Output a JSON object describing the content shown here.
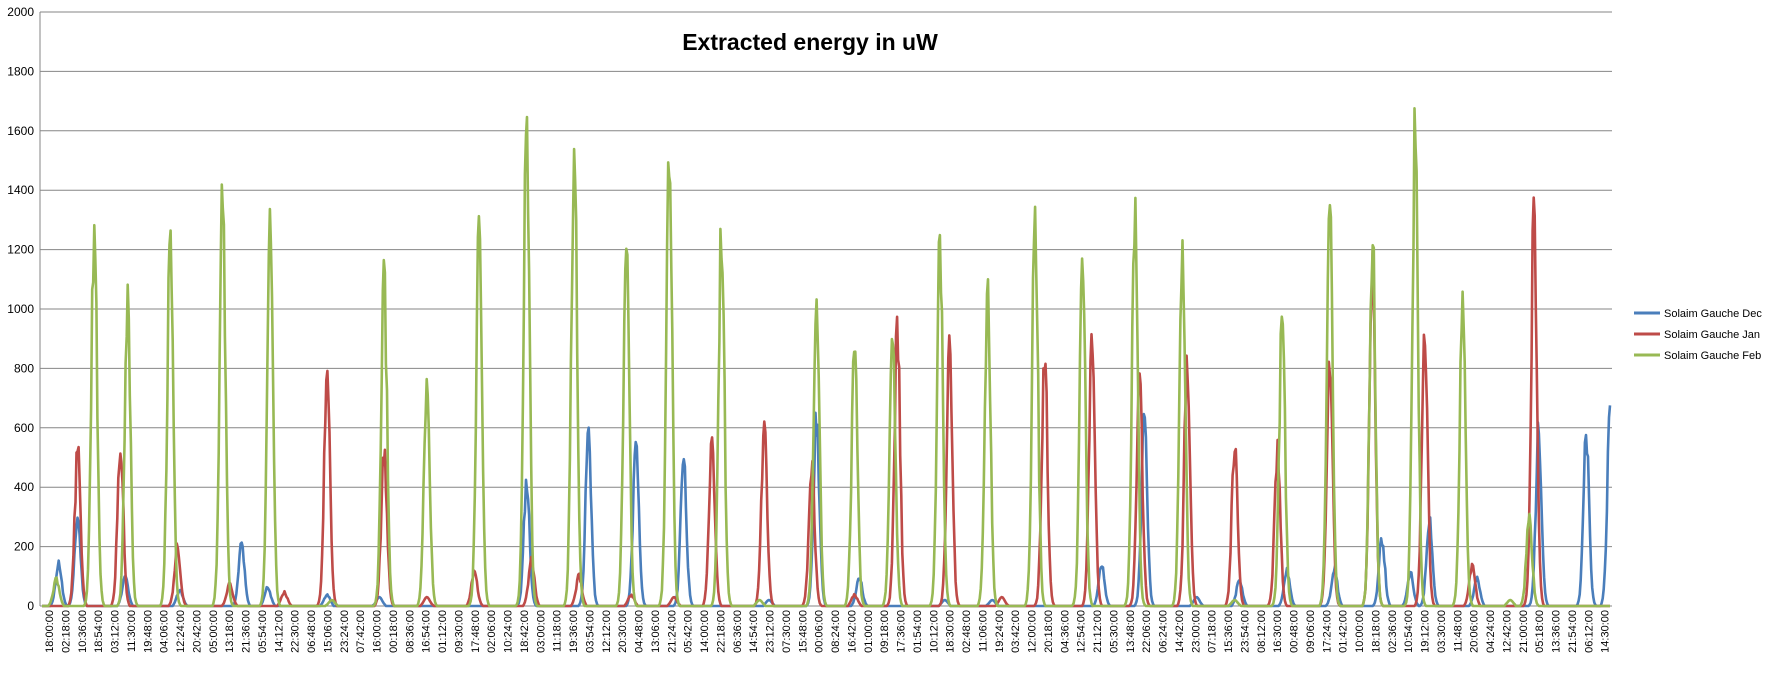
{
  "chart_data": {
    "type": "line",
    "title": "Extracted energy in uW",
    "xlabel": "",
    "ylabel": "",
    "ylim": [
      0,
      2000
    ],
    "y_ticks": [
      0,
      200,
      400,
      600,
      800,
      1000,
      1200,
      1400,
      1600,
      1800,
      2000
    ],
    "grid": "horizontal",
    "legend_position": "right",
    "x_tick_labels": [
      "18:00:00",
      "02:18:00",
      "10:36:00",
      "18:54:00",
      "03:12:00",
      "11:30:00",
      "19:48:00",
      "04:06:00",
      "12:24:00",
      "20:42:00",
      "05:00:00",
      "13:18:00",
      "21:36:00",
      "05:54:00",
      "14:12:00",
      "22:30:00",
      "06:48:00",
      "15:06:00",
      "23:24:00",
      "07:42:00",
      "16:00:00",
      "00:18:00",
      "08:36:00",
      "16:54:00",
      "01:12:00",
      "09:30:00",
      "17:48:00",
      "02:06:00",
      "10:24:00",
      "18:42:00",
      "03:00:00",
      "11:18:00",
      "19:36:00",
      "03:54:00",
      "12:12:00",
      "20:30:00",
      "04:48:00",
      "13:06:00",
      "21:24:00",
      "05:42:00",
      "14:00:00",
      "22:18:00",
      "06:36:00",
      "14:54:00",
      "23:12:00",
      "07:30:00",
      "15:48:00",
      "00:06:00",
      "08:24:00",
      "16:42:00",
      "01:00:00",
      "09:18:00",
      "17:36:00",
      "01:54:00",
      "10:12:00",
      "18:30:00",
      "02:48:00",
      "11:06:00",
      "19:24:00",
      "03:42:00",
      "12:00:00",
      "20:18:00",
      "04:36:00",
      "12:54:00",
      "21:12:00",
      "05:30:00",
      "13:48:00",
      "22:06:00",
      "06:24:00",
      "14:42:00",
      "23:00:00",
      "07:18:00",
      "15:36:00",
      "23:54:00",
      "08:12:00",
      "16:30:00",
      "00:48:00",
      "09:06:00",
      "17:24:00",
      "01:42:00",
      "10:00:00",
      "18:18:00",
      "02:36:00",
      "10:54:00",
      "19:12:00",
      "03:30:00",
      "11:48:00",
      "20:06:00",
      "04:24:00",
      "12:42:00",
      "21:00:00",
      "05:18:00",
      "13:36:00",
      "21:54:00",
      "06:12:00",
      "14:30:00"
    ],
    "day_axis_range": [
      0,
      33
    ],
    "series": [
      {
        "name": "Solaim Gauche Dec",
        "color": "#4a7ebb",
        "peaks": [
          [
            0.35,
            160
          ],
          [
            0.75,
            330
          ],
          [
            1.75,
            110
          ],
          [
            2.9,
            60
          ],
          [
            4.2,
            230
          ],
          [
            4.75,
            70
          ],
          [
            6.0,
            40
          ],
          [
            7.1,
            30
          ],
          [
            10.2,
            460
          ],
          [
            11.5,
            640
          ],
          [
            12.5,
            600
          ],
          [
            13.5,
            560
          ],
          [
            15.3,
            20
          ],
          [
            16.3,
            690
          ],
          [
            17.2,
            110
          ],
          [
            19.0,
            20
          ],
          [
            20.0,
            20
          ],
          [
            22.3,
            150
          ],
          [
            23.2,
            680
          ],
          [
            24.3,
            30
          ],
          [
            25.2,
            100
          ],
          [
            26.2,
            130
          ],
          [
            27.2,
            140
          ],
          [
            28.2,
            250
          ],
          [
            28.8,
            120
          ],
          [
            29.2,
            330
          ],
          [
            30.2,
            100
          ],
          [
            31.5,
            650
          ],
          [
            32.5,
            620
          ],
          [
            33.0,
            680
          ]
        ]
      },
      {
        "name": "Solaim Gauche Jan",
        "color": "#be4b48",
        "peaks": [
          [
            0.75,
            570
          ],
          [
            1.65,
            600
          ],
          [
            2.85,
            220
          ],
          [
            3.95,
            80
          ],
          [
            5.1,
            50
          ],
          [
            6.0,
            890
          ],
          [
            7.2,
            560
          ],
          [
            8.1,
            30
          ],
          [
            9.1,
            130
          ],
          [
            10.3,
            170
          ],
          [
            11.3,
            110
          ],
          [
            12.4,
            40
          ],
          [
            13.3,
            30
          ],
          [
            14.1,
            590
          ],
          [
            15.2,
            640
          ],
          [
            16.2,
            510
          ],
          [
            17.1,
            40
          ],
          [
            18.0,
            1010
          ],
          [
            19.1,
            950
          ],
          [
            20.2,
            30
          ],
          [
            21.1,
            920
          ],
          [
            22.1,
            1000
          ],
          [
            23.1,
            820
          ],
          [
            24.1,
            920
          ],
          [
            25.1,
            600
          ],
          [
            26.0,
            570
          ],
          [
            27.1,
            910
          ],
          [
            28.0,
            1300
          ],
          [
            29.1,
            1000
          ],
          [
            30.1,
            150
          ],
          [
            31.4,
            1410
          ]
        ]
      },
      {
        "name": "Solaim Gauche Feb",
        "color": "#98b954",
        "peaks": [
          [
            0.3,
            100
          ],
          [
            1.1,
            1400
          ],
          [
            1.8,
            1110
          ],
          [
            2.7,
            1400
          ],
          [
            3.8,
            1490
          ],
          [
            4.8,
            1370
          ],
          [
            6.1,
            20
          ],
          [
            7.2,
            1210
          ],
          [
            8.1,
            840
          ],
          [
            9.2,
            1390
          ],
          [
            10.2,
            1780
          ],
          [
            11.2,
            1690
          ],
          [
            12.3,
            1370
          ],
          [
            13.2,
            1700
          ],
          [
            14.3,
            1390
          ],
          [
            15.1,
            20
          ],
          [
            16.3,
            1190
          ],
          [
            17.1,
            940
          ],
          [
            17.9,
            1050
          ],
          [
            18.9,
            1340
          ],
          [
            19.9,
            1150
          ],
          [
            20.9,
            1480
          ],
          [
            21.9,
            1270
          ],
          [
            23.0,
            1460
          ],
          [
            24.0,
            1360
          ],
          [
            25.1,
            20
          ],
          [
            26.1,
            1070
          ],
          [
            27.1,
            1450
          ],
          [
            28.0,
            1370
          ],
          [
            28.9,
            1740
          ],
          [
            29.9,
            1140
          ],
          [
            30.9,
            20
          ],
          [
            31.3,
            330
          ]
        ]
      }
    ]
  }
}
